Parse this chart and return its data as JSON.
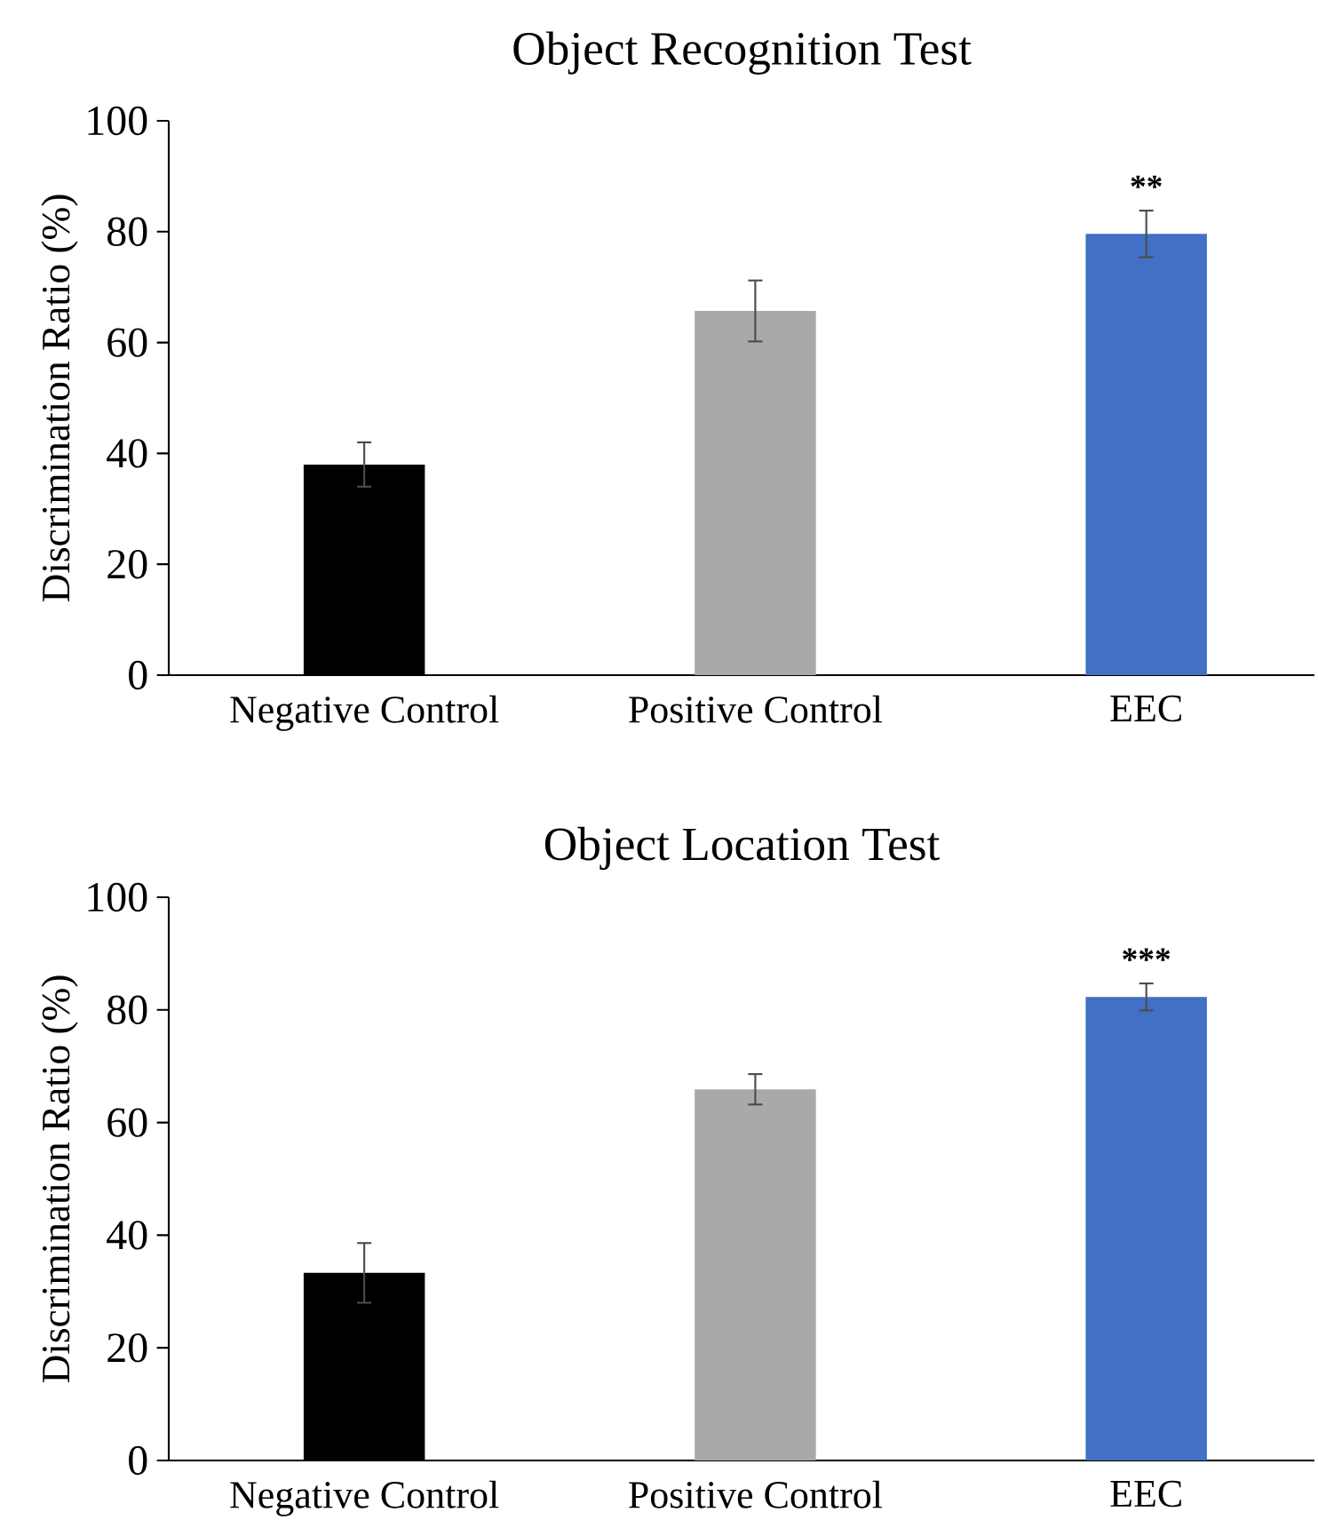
{
  "chart_data": [
    {
      "type": "bar",
      "title": "Object Recognition Test",
      "ylabel": "Discrimination Ratio (%)",
      "categories": [
        "Negative Control",
        "Positive Control",
        "EEC"
      ],
      "values": [
        38,
        65.7,
        79.6
      ],
      "errors": [
        4,
        5.5,
        4.2
      ],
      "colors": [
        "#000000",
        "#a9a9a9",
        "#4170c4"
      ],
      "ylim": [
        0,
        100
      ],
      "yticks": [
        0,
        20,
        40,
        60,
        80,
        100
      ],
      "grid": false,
      "annotations": [
        "**"
      ]
    },
    {
      "type": "bar",
      "title": "Object Location Test",
      "ylabel": "Discrimination Ratio (%)",
      "categories": [
        "Negative Control",
        "Positive Control",
        "EEC"
      ],
      "values": [
        33.3,
        65.9,
        82.3
      ],
      "errors": [
        5.3,
        2.7,
        2.4
      ],
      "colors": [
        "#000000",
        "#a9a9a9",
        "#4170c4"
      ],
      "ylim": [
        0,
        100
      ],
      "yticks": [
        0,
        20,
        40,
        60,
        80,
        100
      ],
      "grid": false,
      "annotations": [
        "***"
      ]
    }
  ]
}
